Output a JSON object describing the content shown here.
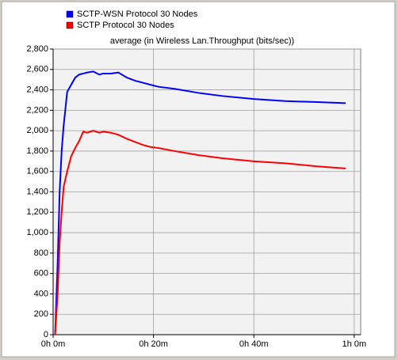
{
  "chart_data": {
    "type": "line",
    "title": "average (in Wireless Lan.Throughput (bits/sec))",
    "x": [
      0.4,
      0.9,
      1.3,
      1.7,
      2.1,
      2.8,
      3.6,
      4.4,
      5.2,
      6,
      6.8,
      8,
      9.2,
      10,
      11.5,
      13,
      14.7,
      16.3,
      17.9,
      19.4,
      21,
      24.2,
      29,
      33.7,
      40,
      46.3,
      52.6,
      58.3
    ],
    "series": [
      {
        "name": "SCTP-WSN Protocol 30 Nodes",
        "color": "#0000ff",
        "values": [
          0,
          700,
          1400,
          1800,
          2050,
          2380,
          2450,
          2520,
          2550,
          2560,
          2570,
          2580,
          2550,
          2560,
          2560,
          2570,
          2520,
          2490,
          2470,
          2450,
          2430,
          2410,
          2370,
          2340,
          2310,
          2290,
          2280,
          2270
        ]
      },
      {
        "name": "SCTP Protocol 30 Nodes",
        "color": "#ff0000",
        "values": [
          0,
          400,
          900,
          1200,
          1450,
          1600,
          1750,
          1830,
          1900,
          1990,
          1980,
          2000,
          1980,
          1990,
          1980,
          1960,
          1920,
          1890,
          1860,
          1840,
          1830,
          1800,
          1760,
          1730,
          1700,
          1680,
          1650,
          1630
        ]
      }
    ],
    "xlim": [
      0,
      61.3
    ],
    "xticks": [
      {
        "value": 0,
        "label": "0h 0m"
      },
      {
        "value": 20,
        "label": "0h 20m"
      },
      {
        "value": 40,
        "label": "0h 40m"
      },
      {
        "value": 60,
        "label": "1h 0m"
      }
    ],
    "ylim": [
      0,
      2800
    ],
    "yticks": [
      0,
      200,
      400,
      600,
      800,
      {
        "value": 1000,
        "label": "1,000"
      },
      {
        "value": 1200,
        "label": "1,200"
      },
      {
        "value": 1400,
        "label": "1,400"
      },
      {
        "value": 1600,
        "label": "1,600"
      },
      {
        "value": 1800,
        "label": "1,800"
      },
      {
        "value": 2000,
        "label": "2,000"
      },
      {
        "value": 2200,
        "label": "2,200"
      },
      {
        "value": 2400,
        "label": "2,400"
      },
      {
        "value": 2600,
        "label": "2,600"
      },
      {
        "value": 2800,
        "label": "2,800"
      }
    ],
    "grid": true
  }
}
